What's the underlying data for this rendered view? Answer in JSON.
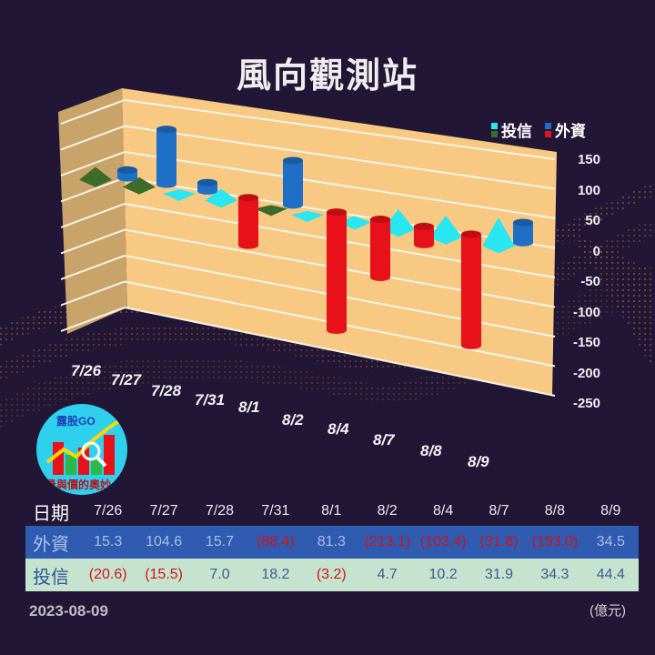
{
  "title": "風向觀測站",
  "legend": [
    {
      "label": "投信",
      "colors": [
        "#29e6f0",
        "#3d6b2a"
      ]
    },
    {
      "label": "外資",
      "colors": [
        "#1f6fc7",
        "#e8111a"
      ]
    }
  ],
  "yaxis_ticks": [
    "150",
    "100",
    "50",
    "0",
    "-50",
    "-100",
    "-150",
    "-200",
    "-250"
  ],
  "xaxis_labels": [
    "7/26",
    "7/27",
    "7/28",
    "7/31",
    "8/1",
    "8/2",
    "8/4",
    "8/7",
    "8/8",
    "8/9"
  ],
  "logo": {
    "top_text": "露股GO",
    "bottom_text": "量與價的奧妙"
  },
  "table": {
    "header_label": "日期",
    "dates": [
      "7/26",
      "7/27",
      "7/28",
      "7/31",
      "8/1",
      "8/2",
      "8/4",
      "8/7",
      "8/8",
      "8/9"
    ],
    "foreign": {
      "label": "外資",
      "values": [
        "15.3",
        "104.6",
        "15.7",
        "(88.4)",
        "81.3",
        "(213.1)",
        "(103.4)",
        "(31.8)",
        "(193.0)",
        "34.5"
      ]
    },
    "trust": {
      "label": "投信",
      "values": [
        "(20.6)",
        "(15.5)",
        "7.0",
        "18.2",
        "(3.2)",
        "4.7",
        "10.2",
        "31.9",
        "34.3",
        "44.4"
      ]
    }
  },
  "footer": {
    "date": "2023-08-09",
    "unit": "(億元)"
  },
  "colors": {
    "background": "#211636",
    "wall": "#f8c982",
    "foreign_pos": "#1f6fc7",
    "foreign_neg": "#e8111a",
    "trust_pos": "#29e6f0",
    "trust_neg": "#3d6b2a",
    "row_foreign": "#2f5bb0",
    "row_trust": "#c6e3d0"
  },
  "chart_data": {
    "type": "bar",
    "title": "風向觀測站",
    "categories": [
      "7/26",
      "7/27",
      "7/28",
      "7/31",
      "8/1",
      "8/2",
      "8/4",
      "8/7",
      "8/8",
      "8/9"
    ],
    "series": [
      {
        "name": "外資",
        "values": [
          15.3,
          104.6,
          15.7,
          -88.4,
          81.3,
          -213.1,
          -103.4,
          -31.8,
          -193.0,
          34.5
        ]
      },
      {
        "name": "投信",
        "values": [
          -20.6,
          -15.5,
          7.0,
          18.2,
          -3.2,
          4.7,
          10.2,
          31.9,
          34.3,
          44.4
        ]
      }
    ],
    "xlabel": "",
    "ylabel": "",
    "ylim": [
      -250,
      150
    ],
    "yticks": [
      150,
      100,
      50,
      0,
      -50,
      -100,
      -150,
      -200,
      -250
    ],
    "unit": "億元",
    "legend_position": "top-right",
    "grid": true
  }
}
